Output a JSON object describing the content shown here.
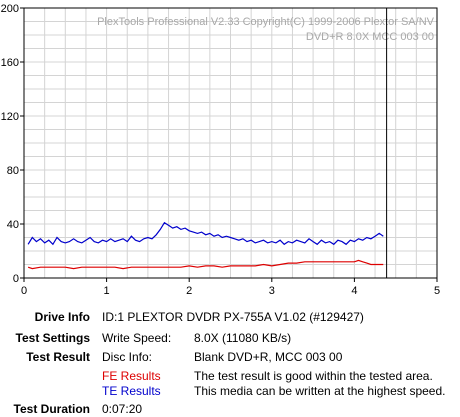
{
  "chart_data": {
    "type": "line",
    "xlim": [
      0,
      5
    ],
    "ylim": [
      0,
      200
    ],
    "x_ticks": [
      0,
      1,
      2,
      3,
      4,
      5
    ],
    "y_ticks": [
      0,
      40,
      80,
      120,
      160,
      200
    ],
    "grid": true,
    "cursor_x": 4.39,
    "watermark_line1": "PlexTools Professional V2.33 Copyright(C) 1999-2006 Plextor SA/NV",
    "watermark_line2": "DVD+R   8.0X   MCC 003 00",
    "series": [
      {
        "name": "TE Results",
        "color": "#0000cc",
        "x": [
          0.05,
          0.1,
          0.15,
          0.2,
          0.25,
          0.3,
          0.35,
          0.4,
          0.45,
          0.5,
          0.55,
          0.6,
          0.65,
          0.7,
          0.75,
          0.8,
          0.85,
          0.9,
          0.95,
          1.0,
          1.05,
          1.1,
          1.15,
          1.2,
          1.25,
          1.3,
          1.35,
          1.4,
          1.45,
          1.5,
          1.55,
          1.6,
          1.65,
          1.7,
          1.75,
          1.8,
          1.85,
          1.9,
          1.95,
          2.0,
          2.05,
          2.1,
          2.15,
          2.2,
          2.25,
          2.3,
          2.35,
          2.4,
          2.45,
          2.5,
          2.55,
          2.6,
          2.65,
          2.7,
          2.75,
          2.8,
          2.85,
          2.9,
          2.95,
          3.0,
          3.05,
          3.1,
          3.15,
          3.2,
          3.25,
          3.3,
          3.35,
          3.4,
          3.45,
          3.5,
          3.55,
          3.6,
          3.65,
          3.7,
          3.75,
          3.8,
          3.85,
          3.9,
          3.95,
          4.0,
          4.05,
          4.1,
          4.15,
          4.2,
          4.25,
          4.3,
          4.35
        ],
        "y": [
          25,
          30,
          27,
          29,
          26,
          28,
          25,
          30,
          27,
          26,
          27,
          29,
          27,
          26,
          28,
          30,
          27,
          26,
          28,
          27,
          29,
          27,
          28,
          29,
          27,
          31,
          28,
          27,
          29,
          30,
          29,
          32,
          36,
          41,
          39,
          37,
          38,
          36,
          37,
          35,
          34,
          33,
          34,
          32,
          33,
          31,
          32,
          30,
          31,
          30,
          29,
          28,
          29,
          27,
          28,
          26,
          27,
          28,
          26,
          27,
          26,
          28,
          25,
          27,
          26,
          28,
          27,
          26,
          29,
          27,
          25,
          28,
          26,
          27,
          25,
          28,
          27,
          25,
          28,
          27,
          29,
          28,
          30,
          29,
          31,
          33,
          31
        ]
      },
      {
        "name": "FE Results",
        "color": "#dd0000",
        "x": [
          0.05,
          0.1,
          0.2,
          0.3,
          0.4,
          0.5,
          0.6,
          0.7,
          0.8,
          0.9,
          1.0,
          1.1,
          1.2,
          1.3,
          1.4,
          1.5,
          1.6,
          1.7,
          1.8,
          1.9,
          2.0,
          2.1,
          2.2,
          2.3,
          2.4,
          2.5,
          2.6,
          2.7,
          2.8,
          2.9,
          3.0,
          3.1,
          3.2,
          3.3,
          3.4,
          3.5,
          3.6,
          3.7,
          3.8,
          3.9,
          4.0,
          4.05,
          4.1,
          4.15,
          4.2,
          4.3,
          4.35
        ],
        "y": [
          8,
          7,
          8,
          8,
          8,
          8,
          7,
          8,
          8,
          8,
          8,
          8,
          7,
          8,
          8,
          8,
          8,
          8,
          8,
          8,
          9,
          8,
          9,
          9,
          8,
          9,
          9,
          9,
          9,
          10,
          9,
          10,
          11,
          11,
          12,
          12,
          12,
          12,
          12,
          12,
          12,
          13,
          12,
          11,
          10,
          10,
          10
        ]
      }
    ]
  },
  "info": {
    "drive_info_label": "Drive Info",
    "drive_info_value": "ID:1 PLEXTOR DVDR PX-755A V1.02 (#129427)",
    "test_settings_label": "Test Settings",
    "test_settings_key": "Write Speed:",
    "test_settings_value": "8.0X (11080 KB/s)",
    "test_result_label": "Test Result",
    "disc_info_key": "Disc Info:",
    "disc_info_value": "Blank DVD+R, MCC 003 00",
    "fe_results_label": "FE Results",
    "fe_results_text": "The test result is good within the tested area.",
    "te_results_label": "TE Results",
    "te_results_text": "This media can be written at the highest speed.",
    "test_duration_label": "Test Duration",
    "test_duration_value": "0:07:20"
  }
}
